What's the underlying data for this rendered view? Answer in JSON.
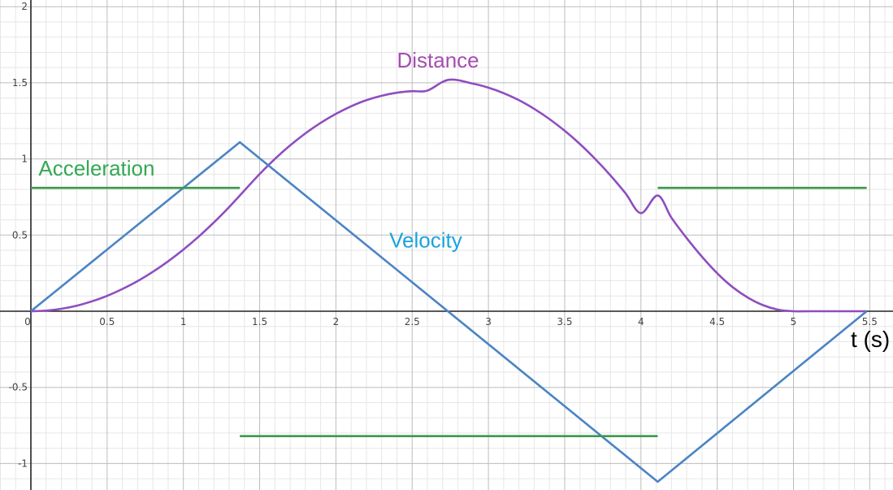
{
  "chart_data": {
    "type": "line",
    "title": "",
    "xlabel": "t (s)",
    "ylabel": "",
    "xlim": [
      0,
      5.85
    ],
    "ylim": [
      -1.17,
      2.02
    ],
    "grid": true,
    "minor_grid_per_major": 5,
    "x_ticks": [
      0,
      0.5,
      1,
      1.5,
      2,
      2.5,
      3,
      3.5,
      4,
      4.5,
      5,
      5.5
    ],
    "x_tick_labels": [
      "0",
      "0.5",
      "1",
      "1.5",
      "2",
      "2.5",
      "3",
      "3.5",
      "4",
      "4.5",
      "5",
      "5.5"
    ],
    "y_ticks": [
      -1,
      -0.5,
      0.5,
      1,
      1.5,
      2
    ],
    "y_tick_labels": [
      "-1",
      "-0.5",
      "0.5",
      "1",
      "1.5",
      "2"
    ],
    "series": [
      {
        "name": "Distance",
        "color": "#8E4EBF",
        "label_color": "#A64CB3",
        "label_anchor": {
          "x": 2.4,
          "y": 1.6
        },
        "x": [
          0,
          0.1,
          0.2,
          0.3,
          0.4,
          0.5,
          0.6,
          0.7,
          0.8,
          0.9,
          1.0,
          1.1,
          1.2,
          1.3,
          1.37,
          1.5,
          1.6,
          1.7,
          1.8,
          1.9,
          2.0,
          2.1,
          2.2,
          2.3,
          2.4,
          2.5,
          2.6,
          2.74,
          2.9,
          3.0,
          3.1,
          3.2,
          3.3,
          3.4,
          3.5,
          3.6,
          3.7,
          3.8,
          3.9,
          4.0,
          4.11,
          4.2,
          4.3,
          4.4,
          4.5,
          4.6,
          4.7,
          4.8,
          4.9,
          5.0,
          5.1,
          5.2,
          5.3,
          5.4,
          5.48
        ],
        "y": [
          0,
          0.004,
          0.016,
          0.036,
          0.065,
          0.101,
          0.146,
          0.198,
          0.259,
          0.328,
          0.405,
          0.49,
          0.583,
          0.684,
          0.76,
          0.901,
          1.0,
          1.089,
          1.168,
          1.237,
          1.296,
          1.346,
          1.386,
          1.415,
          1.435,
          1.445,
          1.449,
          1.52,
          1.494,
          1.468,
          1.432,
          1.386,
          1.329,
          1.262,
          1.185,
          1.098,
          1.0,
          0.892,
          0.773,
          0.644,
          0.76,
          0.614,
          0.48,
          0.358,
          0.249,
          0.159,
          0.09,
          0.04,
          0.01,
          0.0,
          0.0,
          0.0,
          0.0,
          0.0,
          0.0
        ]
      },
      {
        "name": "Velocity",
        "color": "#4A84C4",
        "label_color": "#1AA3E0",
        "label_anchor": {
          "x": 2.35,
          "y": 0.42
        },
        "x": [
          0,
          1.37,
          4.11,
          5.48
        ],
        "y": [
          0,
          1.11,
          -1.12,
          0
        ]
      },
      {
        "name": "Acceleration",
        "color": "#3A9A4A",
        "label_color": "#34A853",
        "label_anchor": {
          "x": 0.05,
          "y": 0.89
        },
        "segments": [
          {
            "x": [
              0,
              1.37
            ],
            "y": [
              0.81,
              0.81
            ]
          },
          {
            "x": [
              1.37,
              4.11
            ],
            "y": [
              -0.82,
              -0.82
            ]
          },
          {
            "x": [
              4.11,
              5.48
            ],
            "y": [
              0.81,
              0.81
            ]
          }
        ]
      }
    ]
  }
}
